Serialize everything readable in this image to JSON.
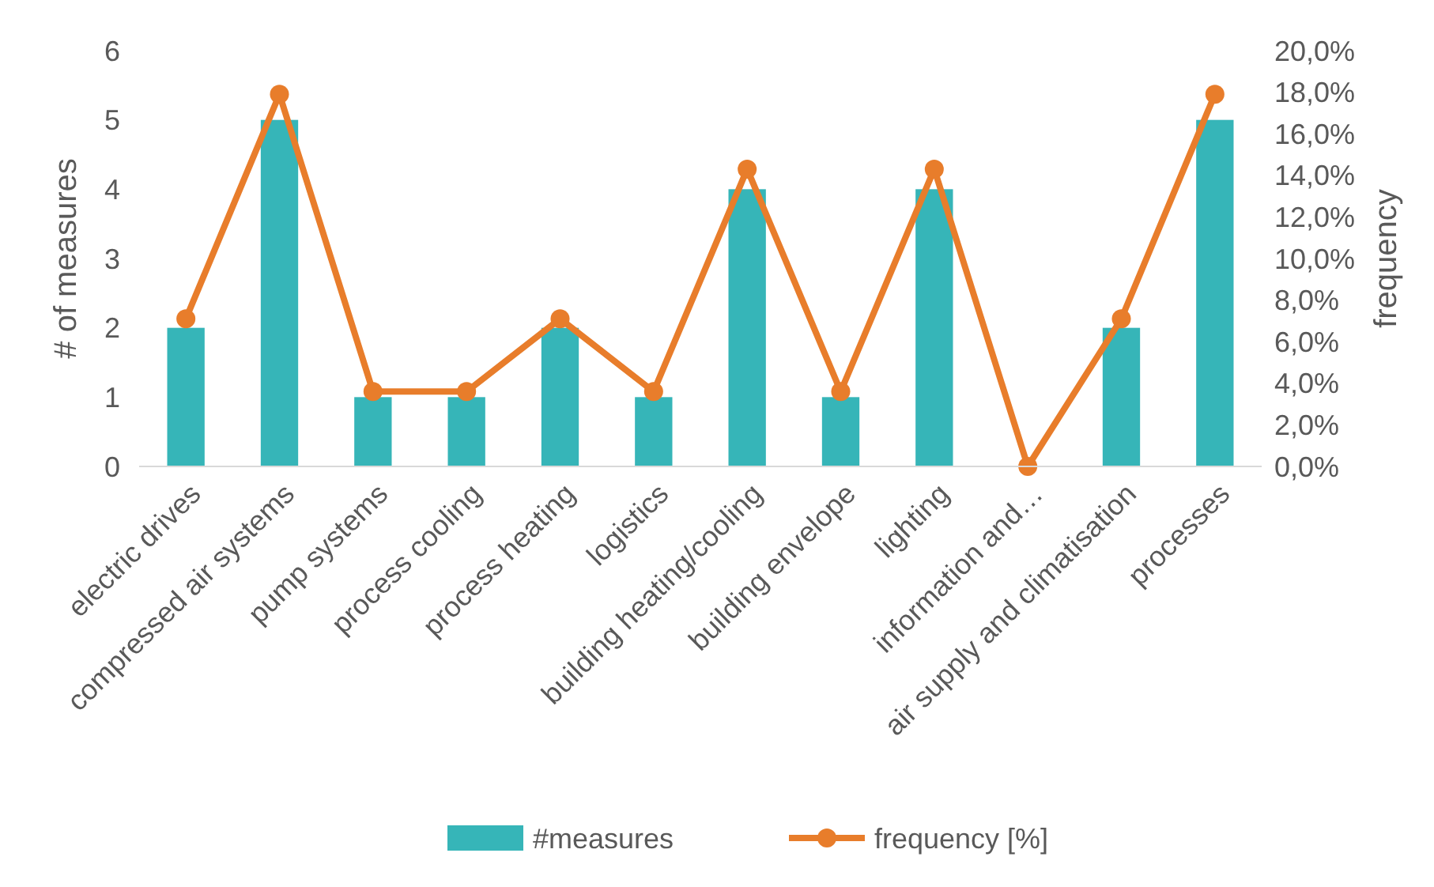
{
  "chart_data": {
    "type": "bar",
    "ylabel": "# of measures",
    "y2label": "frequency",
    "categories": [
      "electric drives",
      "compressed air systems",
      "pump systems",
      "process cooling",
      "process heating",
      "logistics",
      "building heating/cooling",
      "building envelope",
      "lighting",
      "information and…",
      "air supply and climatisation",
      "processes"
    ],
    "series": [
      {
        "name": "#measures",
        "color": "#36b5b8",
        "values": [
          2,
          5,
          1,
          1,
          2,
          1,
          4,
          1,
          4,
          0,
          2,
          5
        ]
      },
      {
        "name": "frequency [%]",
        "type": "line",
        "axis": "y2",
        "color": "#e87d2b",
        "marker": "circle",
        "values": [
          7.1,
          17.9,
          3.6,
          3.6,
          7.1,
          3.6,
          14.3,
          3.6,
          14.3,
          0,
          7.1,
          17.9
        ]
      }
    ],
    "ylim": [
      0,
      6
    ],
    "yticks": [
      0,
      1,
      2,
      3,
      4,
      5,
      6
    ],
    "y2lim": [
      0,
      20
    ],
    "y2ticks": [
      {
        "value": 0,
        "label": "0,0%"
      },
      {
        "value": 2,
        "label": "2,0%"
      },
      {
        "value": 4,
        "label": "4,0%"
      },
      {
        "value": 6,
        "label": "6,0%"
      },
      {
        "value": 8,
        "label": "8,0%"
      },
      {
        "value": 10,
        "label": "10,0%"
      },
      {
        "value": 12,
        "label": "12,0%"
      },
      {
        "value": 14,
        "label": "14,0%"
      },
      {
        "value": 16,
        "label": "16,0%"
      },
      {
        "value": 18,
        "label": "18,0%"
      },
      {
        "value": 20,
        "label": "20,0%"
      }
    ],
    "grid": false,
    "legend": "bottom"
  }
}
